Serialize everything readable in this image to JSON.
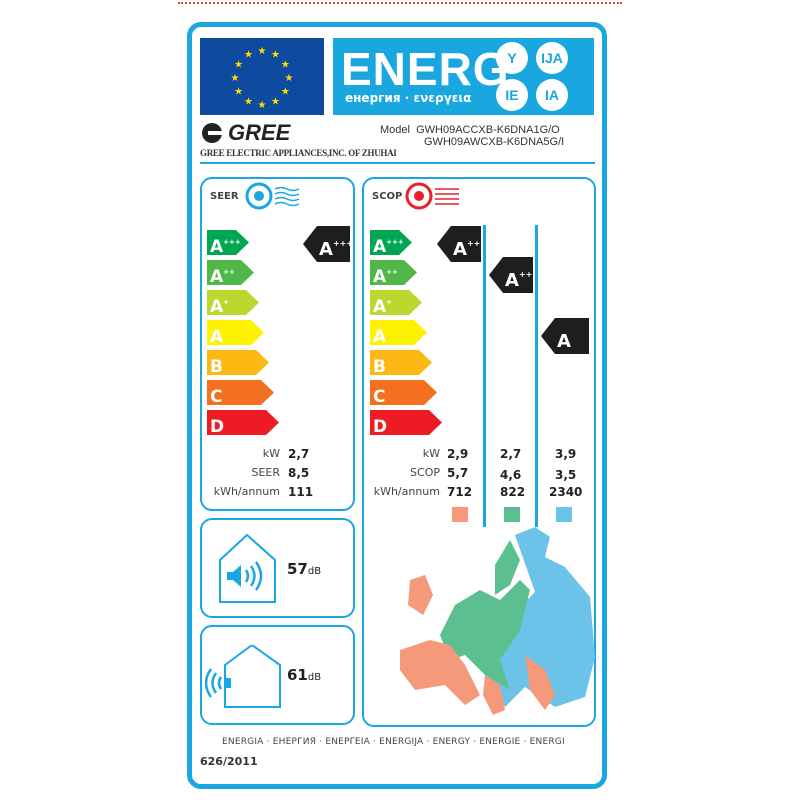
{
  "header": {
    "energy_title": "ENERG",
    "energy_subtitle": "енергия · ενεργεια",
    "suffixes": [
      "Y",
      "IJA",
      "IE",
      "IA"
    ]
  },
  "supplier": {
    "brand": "GREE",
    "company": "GREE ELECTRIC APPLIANCES,INC. OF ZHUHAI",
    "model_label": "Model",
    "models": [
      "GWH09ACCXB-K6DNA1G/O",
      "GWH09AWCXB-K6DNA5G/I"
    ]
  },
  "scale": [
    {
      "letter": "A",
      "plus": "+++",
      "color": "#00a651"
    },
    {
      "letter": "A",
      "plus": "++",
      "color": "#50b848"
    },
    {
      "letter": "A",
      "plus": "+",
      "color": "#bed630"
    },
    {
      "letter": "A",
      "plus": "",
      "color": "#fff200"
    },
    {
      "letter": "B",
      "plus": "",
      "color": "#fdb913"
    },
    {
      "letter": "C",
      "plus": "",
      "color": "#f37021"
    },
    {
      "letter": "D",
      "plus": "",
      "color": "#ed1c24"
    }
  ],
  "cooling": {
    "label": "SEER",
    "icon": "fan-cooling-icon",
    "icon_color": "#1aa7e0",
    "class_letter": "A",
    "class_plus": "+++",
    "rows": [
      {
        "key": "kW",
        "value": "2,7"
      },
      {
        "key": "SEER",
        "value": "8,5"
      },
      {
        "key": "kWh/annum",
        "value": "111"
      }
    ]
  },
  "heating": {
    "label": "SCOP",
    "icon": "fan-heating-icon",
    "icon_color": "#e8202a",
    "row_keys": [
      "kW",
      "SCOP",
      "kWh/annum"
    ],
    "zones": [
      {
        "class_letter": "A",
        "class_plus": "+++",
        "values": [
          "2,9",
          "5,7",
          "712"
        ],
        "color": "#f4997a"
      },
      {
        "class_letter": "A",
        "class_plus": "++",
        "values": [
          "2,7",
          "4,6",
          "822"
        ],
        "color": "#5bbf8f"
      },
      {
        "class_letter": "A",
        "class_plus": "",
        "values": [
          "3,9",
          "3,5",
          "2340"
        ],
        "color": "#6cc3ea"
      }
    ]
  },
  "noise": [
    {
      "icon": "indoor-sound-icon",
      "value": "57",
      "unit": "dB"
    },
    {
      "icon": "outdoor-sound-icon",
      "value": "61",
      "unit": "dB"
    }
  ],
  "footer": {
    "languages": "ENERGIA · ЕНЕРГИЯ · ΕΝΕΡΓΕΙΑ · ENERGIJA · ENERGY · ENERGIE · ENERGI",
    "regulation": "626/2011"
  }
}
